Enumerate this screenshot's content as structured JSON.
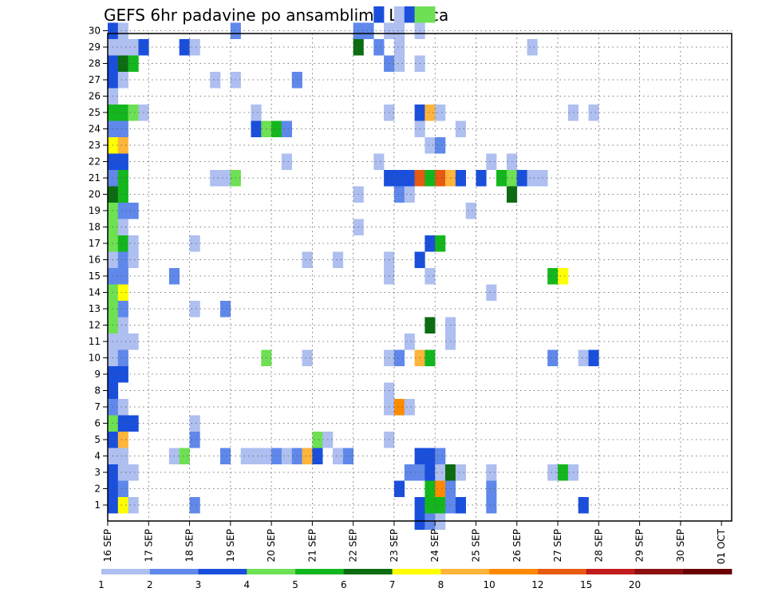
{
  "chart_data": {
    "type": "heatmap",
    "title": "GEFS 6hr padavine po ansamblima Loznica",
    "x_labels": [
      "16 SEP",
      "17 SEP",
      "18 SEP",
      "19 SEP",
      "20 SEP",
      "21 SEP",
      "22 SEP",
      "23 SEP",
      "24 SEP",
      "25 SEP",
      "26 SEP",
      "27 SEP",
      "28 SEP",
      "29 SEP",
      "30 SEP",
      "01 OCT"
    ],
    "y_labels": [
      "1",
      "2",
      "3",
      "4",
      "5",
      "6",
      "7",
      "8",
      "9",
      "10",
      "11",
      "12",
      "13",
      "14",
      "15",
      "16",
      "17",
      "18",
      "19",
      "20",
      "21",
      "22",
      "23",
      "24",
      "25",
      "26",
      "27",
      "28",
      "29",
      "30"
    ],
    "x_unit": "6-hour step from 16 SEP 00Z",
    "grid": true,
    "legend": {
      "position": "bottom",
      "labels": [
        "1",
        "2",
        "3",
        "4",
        "5",
        "6",
        "7",
        "8",
        "10",
        "12",
        "15",
        "20"
      ],
      "colors": [
        "#aebff0",
        "#5f88ea",
        "#1a4fdc",
        "#6de053",
        "#13b71d",
        "#0b6c11",
        "#ffff00",
        "#ffb43a",
        "#ff8a00",
        "#e85a10",
        "#c21b1b",
        "#8b1010",
        "#6b0000"
      ]
    },
    "cells": [
      [
        0,
        0,
        3
      ],
      [
        0,
        1,
        3
      ],
      [
        0,
        2,
        3
      ],
      [
        0,
        3,
        1
      ],
      [
        0,
        4,
        3
      ],
      [
        0,
        5,
        4
      ],
      [
        0,
        6,
        2
      ],
      [
        0,
        7,
        3
      ],
      [
        0,
        8,
        3
      ],
      [
        0,
        9,
        1
      ],
      [
        0,
        10,
        1
      ],
      [
        0,
        11,
        4
      ],
      [
        0,
        12,
        4
      ],
      [
        0,
        13,
        4
      ],
      [
        0,
        14,
        2
      ],
      [
        0,
        15,
        1
      ],
      [
        0,
        16,
        4
      ],
      [
        0,
        17,
        4
      ],
      [
        0,
        18,
        4
      ],
      [
        0,
        19,
        6
      ],
      [
        0,
        20,
        2
      ],
      [
        0,
        21,
        3
      ],
      [
        0,
        22,
        7
      ],
      [
        0,
        23,
        2
      ],
      [
        0,
        24,
        5
      ],
      [
        0,
        25,
        1
      ],
      [
        0,
        26,
        3
      ],
      [
        0,
        27,
        3
      ],
      [
        0,
        28,
        1
      ],
      [
        0,
        29,
        3
      ],
      [
        1,
        0,
        7
      ],
      [
        1,
        1,
        2
      ],
      [
        1,
        2,
        1
      ],
      [
        1,
        3,
        1
      ],
      [
        1,
        4,
        8
      ],
      [
        1,
        5,
        3
      ],
      [
        1,
        6,
        1
      ],
      [
        1,
        8,
        3
      ],
      [
        1,
        9,
        2
      ],
      [
        1,
        10,
        1
      ],
      [
        1,
        11,
        1
      ],
      [
        1,
        12,
        2
      ],
      [
        1,
        13,
        7
      ],
      [
        1,
        14,
        2
      ],
      [
        1,
        15,
        2
      ],
      [
        1,
        16,
        5
      ],
      [
        1,
        17,
        1
      ],
      [
        1,
        18,
        2
      ],
      [
        1,
        19,
        5
      ],
      [
        1,
        20,
        5
      ],
      [
        1,
        21,
        3
      ],
      [
        1,
        22,
        8
      ],
      [
        1,
        23,
        2
      ],
      [
        1,
        24,
        5
      ],
      [
        1,
        26,
        1
      ],
      [
        1,
        27,
        6
      ],
      [
        1,
        28,
        1
      ],
      [
        1,
        29,
        1
      ],
      [
        2,
        0,
        1
      ],
      [
        2,
        2,
        1
      ],
      [
        2,
        5,
        3
      ],
      [
        2,
        10,
        1
      ],
      [
        2,
        15,
        1
      ],
      [
        2,
        16,
        1
      ],
      [
        2,
        18,
        2
      ],
      [
        2,
        27,
        5
      ],
      [
        2,
        28,
        1
      ],
      [
        2,
        24,
        4
      ],
      [
        3,
        28,
        3
      ],
      [
        3,
        24,
        1
      ],
      [
        6,
        3,
        1
      ],
      [
        6,
        14,
        2
      ],
      [
        7,
        3,
        4
      ],
      [
        7,
        28,
        3
      ],
      [
        8,
        4,
        2
      ],
      [
        8,
        0,
        2
      ],
      [
        8,
        16,
        1
      ],
      [
        8,
        5,
        1
      ],
      [
        8,
        12,
        1
      ],
      [
        8,
        28,
        1
      ],
      [
        10,
        20,
        1
      ],
      [
        10,
        26,
        1
      ],
      [
        11,
        3,
        2
      ],
      [
        11,
        20,
        1
      ],
      [
        11,
        12,
        2
      ],
      [
        12,
        20,
        4
      ],
      [
        12,
        26,
        1
      ],
      [
        12,
        29,
        2
      ],
      [
        13,
        3,
        1
      ],
      [
        14,
        23,
        3
      ],
      [
        14,
        3,
        1
      ],
      [
        14,
        24,
        1
      ],
      [
        15,
        3,
        1
      ],
      [
        15,
        9,
        4
      ],
      [
        15,
        23,
        4
      ],
      [
        16,
        3,
        2
      ],
      [
        16,
        23,
        5
      ],
      [
        17,
        3,
        1
      ],
      [
        17,
        23,
        2
      ],
      [
        17,
        21,
        1
      ],
      [
        18,
        3,
        2
      ],
      [
        18,
        26,
        2
      ],
      [
        19,
        3,
        8
      ],
      [
        19,
        9,
        1
      ],
      [
        19,
        15,
        1
      ],
      [
        20,
        3,
        3
      ],
      [
        20,
        4,
        4
      ],
      [
        21,
        4,
        1
      ],
      [
        22,
        3,
        1
      ],
      [
        22,
        15,
        1
      ],
      [
        23,
        3,
        2
      ],
      [
        26,
        21,
        1
      ],
      [
        27,
        6,
        1
      ],
      [
        27,
        24,
        1
      ],
      [
        27,
        4,
        1
      ],
      [
        27,
        20,
        3
      ],
      [
        27,
        29,
        1
      ],
      [
        27,
        27,
        2
      ],
      [
        27,
        24,
        1
      ],
      [
        27,
        9,
        1
      ],
      [
        28,
        30,
        1
      ],
      [
        28,
        29,
        1
      ],
      [
        29,
        30,
        1
      ],
      [
        24,
        17,
        1
      ],
      [
        24,
        19,
        1
      ],
      [
        24,
        29,
        2
      ],
      [
        24,
        28,
        6
      ],
      [
        25,
        29,
        2
      ],
      [
        26,
        28,
        2
      ],
      [
        26,
        30,
        3
      ],
      [
        27,
        14,
        1
      ],
      [
        27,
        7,
        1
      ],
      [
        27,
        15,
        1
      ],
      [
        28,
        1,
        3
      ],
      [
        28,
        6,
        9
      ],
      [
        28,
        9,
        2
      ],
      [
        28,
        19,
        2
      ],
      [
        28,
        20,
        3
      ],
      [
        28,
        27,
        1
      ],
      [
        28,
        28,
        1
      ],
      [
        29,
        6,
        1
      ],
      [
        29,
        10,
        1
      ],
      [
        29,
        19,
        1
      ],
      [
        29,
        30,
        3
      ],
      [
        29,
        2,
        2
      ],
      [
        29,
        20,
        3
      ],
      [
        30,
        0,
        3
      ],
      [
        30,
        2,
        2
      ],
      [
        30,
        3,
        3
      ],
      [
        30,
        9,
        8
      ],
      [
        30,
        15,
        3
      ],
      [
        30,
        20,
        10
      ],
      [
        30,
        24,
        3
      ],
      [
        30,
        -1,
        3
      ],
      [
        30,
        30,
        4
      ],
      [
        30,
        23,
        1
      ],
      [
        30,
        27,
        1
      ],
      [
        30,
        29,
        1
      ],
      [
        31,
        0,
        5
      ],
      [
        31,
        1,
        5
      ],
      [
        31,
        2,
        3
      ],
      [
        31,
        3,
        3
      ],
      [
        31,
        9,
        5
      ],
      [
        31,
        11,
        6
      ],
      [
        31,
        14,
        1
      ],
      [
        31,
        16,
        3
      ],
      [
        31,
        20,
        5
      ],
      [
        31,
        22,
        1
      ],
      [
        31,
        24,
        8
      ],
      [
        31,
        -1,
        2
      ],
      [
        31,
        30,
        4
      ],
      [
        32,
        0,
        5
      ],
      [
        32,
        1,
        9
      ],
      [
        32,
        2,
        1
      ],
      [
        32,
        3,
        2
      ],
      [
        32,
        16,
        5
      ],
      [
        32,
        20,
        10
      ],
      [
        32,
        24,
        1
      ],
      [
        32,
        -1,
        1
      ],
      [
        32,
        22,
        2
      ],
      [
        33,
        0,
        2
      ],
      [
        33,
        1,
        2
      ],
      [
        33,
        2,
        6
      ],
      [
        33,
        10,
        1
      ],
      [
        33,
        20,
        8
      ],
      [
        33,
        11,
        1
      ],
      [
        34,
        0,
        3
      ],
      [
        34,
        20,
        3
      ],
      [
        34,
        23,
        1
      ],
      [
        34,
        2,
        1
      ],
      [
        35,
        18,
        1
      ],
      [
        36,
        20,
        3
      ],
      [
        37,
        0,
        2
      ],
      [
        37,
        1,
        2
      ],
      [
        37,
        2,
        1
      ],
      [
        37,
        13,
        1
      ],
      [
        37,
        21,
        1
      ],
      [
        38,
        20,
        5
      ],
      [
        38,
        20,
        5
      ],
      [
        39,
        20,
        4
      ],
      [
        39,
        21,
        1
      ],
      [
        39,
        19,
        6
      ],
      [
        40,
        20,
        3
      ],
      [
        40,
        20,
        3
      ],
      [
        41,
        20,
        1
      ],
      [
        41,
        28,
        1
      ],
      [
        42,
        20,
        1
      ],
      [
        43,
        2,
        1
      ],
      [
        43,
        9,
        2
      ],
      [
        43,
        14,
        5
      ],
      [
        44,
        2,
        5
      ],
      [
        44,
        14,
        7
      ],
      [
        45,
        2,
        1
      ],
      [
        45,
        24,
        1
      ],
      [
        46,
        0,
        3
      ],
      [
        46,
        9,
        1
      ],
      [
        47,
        9,
        3
      ],
      [
        47,
        24,
        1
      ]
    ]
  }
}
